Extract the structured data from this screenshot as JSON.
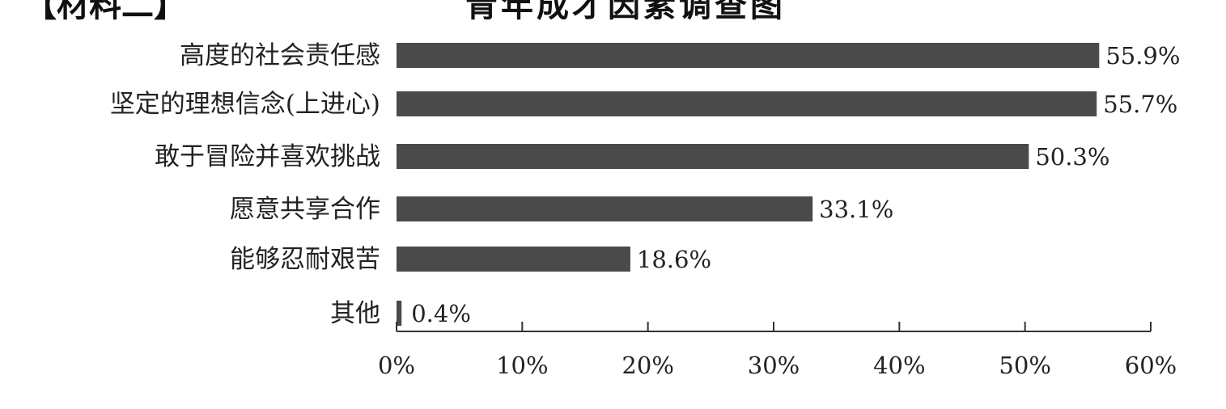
{
  "header": {
    "material_label": "【材料二】",
    "title": "青年成才因素调查图"
  },
  "chart_data": {
    "type": "bar",
    "orientation": "horizontal",
    "title": "青年成才因素调查图",
    "categories": [
      "高度的社会责任感",
      "坚定的理想信念(上进心)",
      "敢于冒险并喜欢挑战",
      "愿意共享合作",
      "能够忍耐艰苦",
      "其他"
    ],
    "values": [
      55.9,
      55.7,
      50.3,
      33.1,
      18.6,
      0.4
    ],
    "data_labels": [
      "55.9%",
      "55.7%",
      "50.3%",
      "33.1%",
      "18.6%",
      "0.4%"
    ],
    "xlim": [
      0,
      60
    ],
    "xticks": [
      0,
      10,
      20,
      30,
      40,
      50,
      60
    ],
    "xtick_labels": [
      "0%",
      "10%",
      "20%",
      "30%",
      "40%",
      "50%",
      "60%"
    ],
    "xlabel": "",
    "ylabel": "",
    "grid": false,
    "bar_color": "#4a4a4a"
  }
}
